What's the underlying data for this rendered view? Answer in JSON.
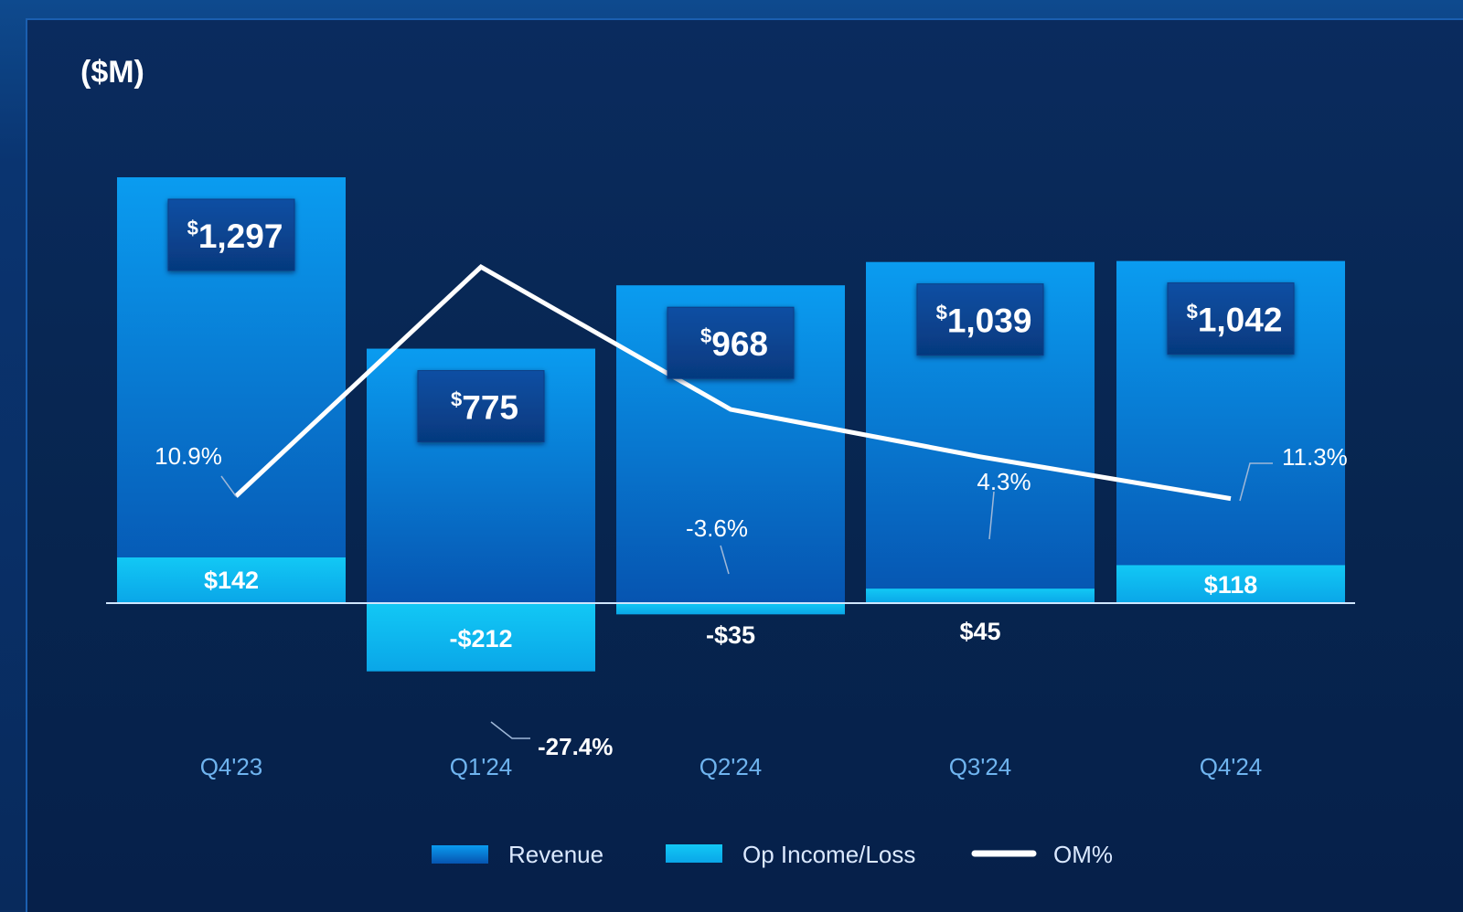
{
  "unit_label": "($M)",
  "colors": {
    "revenue": "#0a8fe6",
    "op_income": "#10c3f2",
    "om_line": "#ffffff",
    "tick_label": "#6fb4ef",
    "background": "#07254f"
  },
  "chart_data": {
    "type": "bar",
    "categories": [
      "Q4'23",
      "Q1'24",
      "Q2'24",
      "Q3'24",
      "Q4'24"
    ],
    "series": [
      {
        "name": "Revenue",
        "kind": "bar",
        "values": [
          1297,
          775,
          968,
          1039,
          1042
        ],
        "labels": [
          "1,297",
          "775",
          "968",
          "1,039",
          "1,042"
        ],
        "currency_symbol": "$"
      },
      {
        "name": "Op Income/Loss",
        "kind": "bar",
        "values": [
          142,
          -212,
          -35,
          45,
          118
        ],
        "labels": [
          "$142",
          "-$212",
          "-$35",
          "$45",
          "$118"
        ]
      },
      {
        "name": "OM%",
        "kind": "line",
        "values": [
          10.9,
          -27.4,
          -3.6,
          4.3,
          11.3
        ],
        "labels": [
          "10.9%",
          "-27.4%",
          "-3.6%",
          "4.3%",
          "11.3%"
        ]
      }
    ],
    "legend": [
      "Revenue",
      "Op Income/Loss",
      "OM%"
    ],
    "legend_position": "bottom",
    "grid": false,
    "ylim": [
      -212,
      1297
    ]
  }
}
